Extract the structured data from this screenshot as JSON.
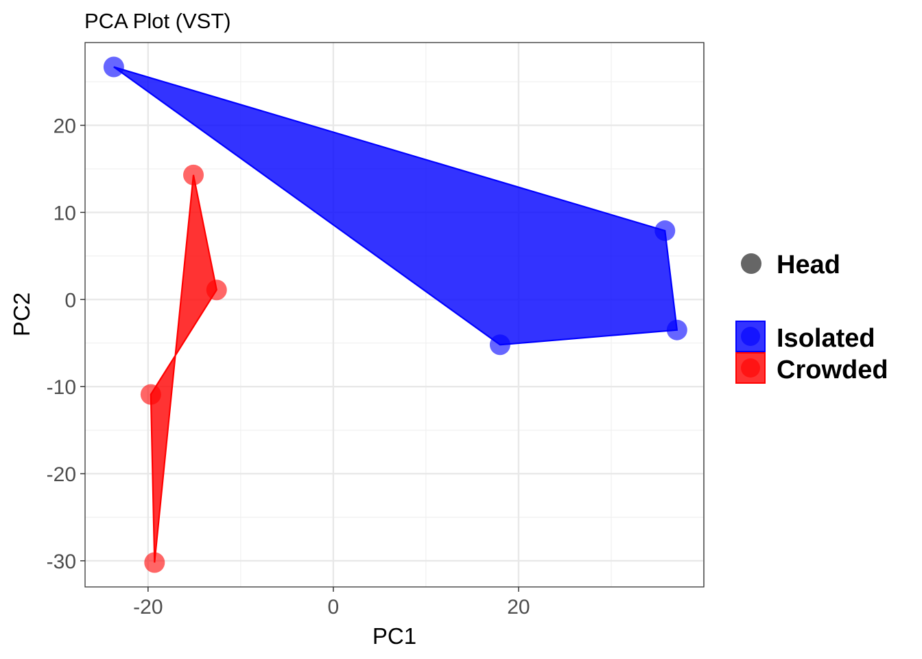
{
  "chart_data": {
    "type": "scatter",
    "title": "PCA Plot (VST)",
    "xlabel": "PC1",
    "ylabel": "PC2",
    "xlim": [
      -26.8,
      40.0
    ],
    "ylim": [
      -33.0,
      29.5
    ],
    "x_ticks": [
      -20,
      0,
      20
    ],
    "x_tick_labels": [
      "-20",
      "0",
      "20"
    ],
    "y_ticks": [
      -30,
      -20,
      -10,
      0,
      10,
      20
    ],
    "y_tick_labels": [
      "-30",
      "-20",
      "-10",
      "0",
      "10",
      "20"
    ],
    "grid": true,
    "legend_position": "right",
    "shape_legend": {
      "entries": [
        {
          "label": "Head",
          "shape": "circle",
          "color": "#666666"
        }
      ]
    },
    "series": [
      {
        "name": "Isolated",
        "color": "#0000ff",
        "points": [
          {
            "x": -23.7,
            "y": 26.7
          },
          {
            "x": 35.8,
            "y": 7.9
          },
          {
            "x": 37.1,
            "y": -3.5
          },
          {
            "x": 18.0,
            "y": -5.2
          }
        ]
      },
      {
        "name": "Crowded",
        "color": "#ff0000",
        "points": [
          {
            "x": -15.1,
            "y": 14.3
          },
          {
            "x": -12.6,
            "y": 1.1
          },
          {
            "x": -19.7,
            "y": -10.9
          },
          {
            "x": -19.3,
            "y": -30.2
          }
        ]
      }
    ]
  }
}
